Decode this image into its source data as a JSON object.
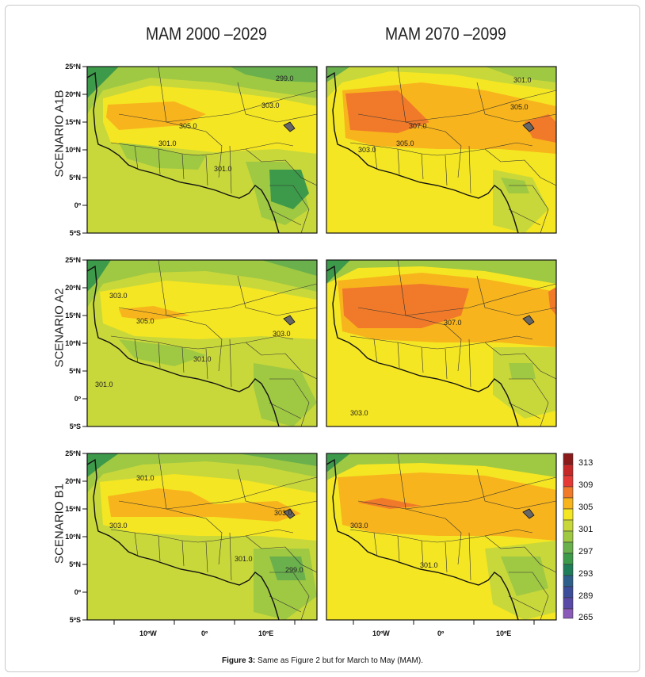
{
  "columns": [
    "MAM 2000 –2029",
    "MAM 2070 –2099"
  ],
  "rows": [
    {
      "label": "SCENARIO  A1B"
    },
    {
      "label": "SCENARIO  A2"
    },
    {
      "label": "SCENARIO  B1"
    }
  ],
  "lat_ticks": [
    "25ºN",
    "20ºN",
    "15ºN",
    "10ºN",
    "5ºN",
    "0º",
    "5ºS"
  ],
  "lon_ticks": [
    "10ºW",
    "0º",
    "10ºE"
  ],
  "legend": [
    "313",
    "309",
    "305",
    "301",
    "297",
    "293",
    "289",
    "265"
  ],
  "contour_labels": {
    "a1b_left": [
      "299.0",
      "303.0",
      "305.0",
      "301.0",
      "301.0"
    ],
    "a1b_right": [
      "301.0",
      "305.0",
      "307.0",
      "305.0",
      "303.0"
    ],
    "a2_left": [
      "303.0",
      "305.0",
      "303.0",
      "301.0",
      "301.0"
    ],
    "a2_right": [
      "307.0",
      "303.0"
    ],
    "b1_left": [
      "301.0",
      "303.0",
      "303.0",
      "301.0",
      "299.0"
    ],
    "b1_right": [
      "303.0",
      "301.0"
    ]
  },
  "colors": {
    "c313": "#8b1a1a",
    "c311": "#c62828",
    "c309": "#e53935",
    "c307": "#f07a2a",
    "c305": "#f8b41c",
    "c303": "#f4e623",
    "c301": "#c8d83a",
    "c299": "#9fc843",
    "c297": "#6ab04c",
    "c295": "#3d9a4a",
    "c293": "#1f7d5a",
    "c291": "#2d5f8a",
    "c289": "#3c4d9a",
    "c287": "#5a4aa8",
    "c265": "#8a5bb8"
  },
  "caption": {
    "bold": "Figure 3:",
    "text": " Same as Figure 2 but for March to May (MAM)."
  }
}
